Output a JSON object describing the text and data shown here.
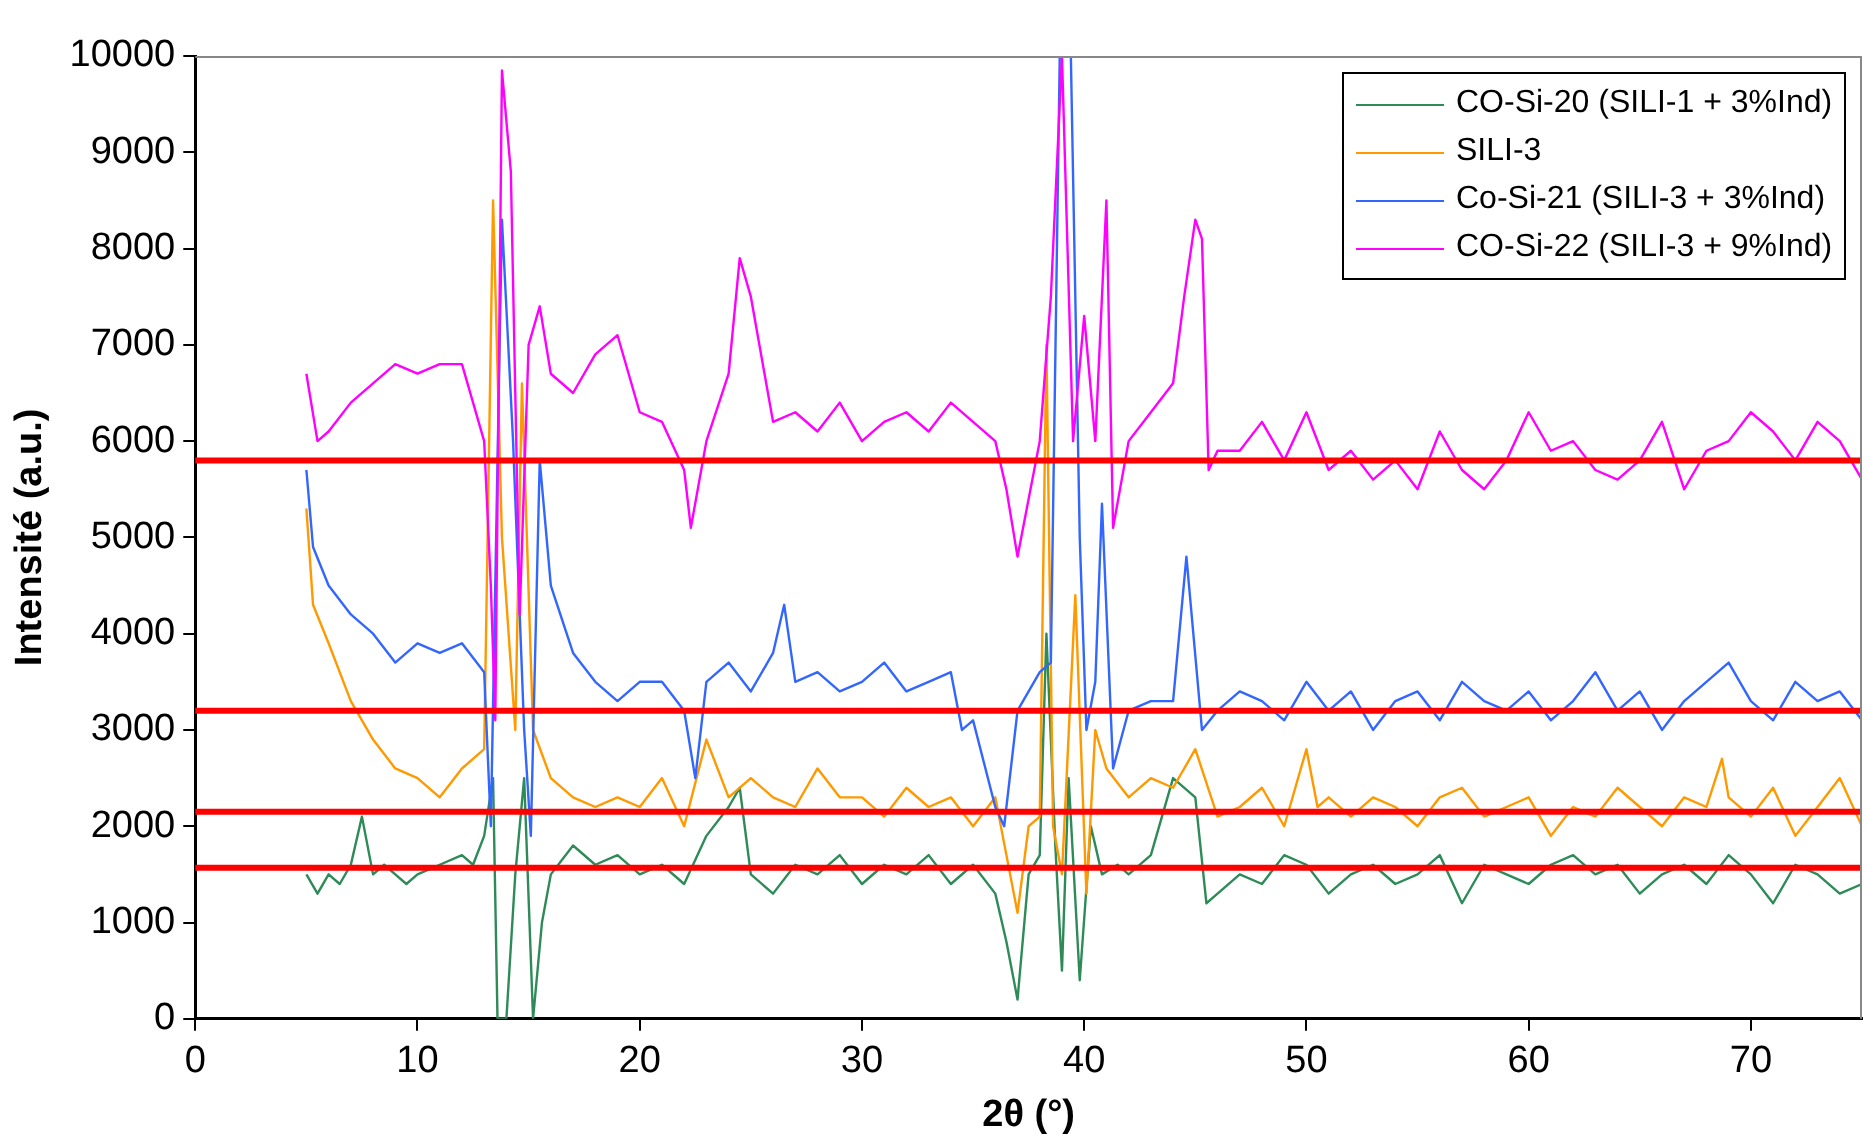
{
  "chart_data": {
    "type": "line",
    "xlabel": "2θ (°)",
    "ylabel": "Intensité (a.u.)",
    "xlim": [
      0,
      75
    ],
    "xticks": [
      0,
      10,
      20,
      30,
      40,
      50,
      60,
      70
    ],
    "ylim": [
      0,
      10000
    ],
    "yticks": [
      0,
      1000,
      2000,
      3000,
      4000,
      5000,
      6000,
      7000,
      8000,
      9000,
      10000
    ],
    "grid": false,
    "legend": "top right",
    "marker": "none",
    "line_style": "solid",
    "ref_lines": [
      {
        "axis": "y",
        "value": 5800,
        "color": "#ff0000"
      },
      {
        "axis": "y",
        "value": 3200,
        "color": "#ff0000"
      },
      {
        "axis": "y",
        "value": 2150,
        "color": "#ff0000"
      },
      {
        "axis": "y",
        "value": 1570,
        "color": "#ff0000"
      }
    ],
    "series": [
      {
        "name": "CO-Si-20 (SILI-1 + 3%Ind)",
        "color": "#2e8b57",
        "x": [
          5,
          5.5,
          6,
          6.5,
          7,
          7.5,
          8,
          8.5,
          9,
          9.5,
          10,
          11,
          12,
          12.5,
          13,
          13.4,
          13.6,
          14,
          14.4,
          14.8,
          15.2,
          15.6,
          16,
          17,
          18,
          19,
          20,
          21,
          22,
          23,
          24,
          24.5,
          25,
          26,
          27,
          28,
          29,
          30,
          31,
          32,
          33,
          34,
          35,
          36,
          36.5,
          37,
          37.5,
          38,
          38.3,
          38.7,
          39,
          39.3,
          39.8,
          40.3,
          40.8,
          41.5,
          42,
          43,
          44,
          45,
          45.5,
          46,
          47,
          48,
          49,
          50,
          51,
          52,
          53,
          54,
          55,
          56,
          57,
          58,
          59,
          60,
          61,
          62,
          63,
          64,
          65,
          66,
          67,
          68,
          69,
          70,
          71,
          72,
          73,
          74,
          75
        ],
        "values": [
          1500,
          1300,
          1500,
          1400,
          1600,
          2100,
          1500,
          1600,
          1500,
          1400,
          1500,
          1600,
          1700,
          1600,
          1900,
          2500,
          0,
          0,
          1500,
          2500,
          0,
          1000,
          1500,
          1800,
          1600,
          1700,
          1500,
          1600,
          1400,
          1900,
          2200,
          2400,
          1500,
          1300,
          1600,
          1500,
          1700,
          1400,
          1600,
          1500,
          1700,
          1400,
          1600,
          1300,
          800,
          200,
          1500,
          1700,
          4000,
          1800,
          500,
          2500,
          400,
          2000,
          1500,
          1600,
          1500,
          1700,
          2500,
          2300,
          1200,
          1300,
          1500,
          1400,
          1700,
          1600,
          1300,
          1500,
          1600,
          1400,
          1500,
          1700,
          1200,
          1600,
          1500,
          1400,
          1600,
          1700,
          1500,
          1600,
          1300,
          1500,
          1600,
          1400,
          1700,
          1500,
          1200,
          1600,
          1500,
          1300,
          1400
        ]
      },
      {
        "name": "SILI-3",
        "color": "#ff9900",
        "x": [
          5,
          5.3,
          6,
          7,
          8,
          9,
          10,
          11,
          12,
          13,
          13.4,
          13.8,
          14.4,
          14.7,
          15.2,
          16,
          17,
          18,
          19,
          20,
          21,
          22,
          23,
          24,
          25,
          26,
          27,
          28,
          29,
          30,
          31,
          32,
          33,
          34,
          35,
          36,
          36.5,
          37,
          37.5,
          38,
          38.3,
          38.6,
          39,
          39.6,
          40.1,
          40.5,
          41,
          42,
          43,
          44,
          45,
          46,
          47,
          48,
          49,
          50,
          50.5,
          51,
          52,
          53,
          54,
          55,
          56,
          57,
          58,
          59,
          60,
          61,
          62,
          63,
          64,
          65,
          66,
          67,
          68,
          68.7,
          69,
          70,
          71,
          72,
          73,
          74,
          75
        ],
        "values": [
          5300,
          4300,
          3900,
          3300,
          2900,
          2600,
          2500,
          2300,
          2600,
          2800,
          8500,
          5000,
          3000,
          6600,
          3000,
          2500,
          2300,
          2200,
          2300,
          2200,
          2500,
          2000,
          2900,
          2300,
          2500,
          2300,
          2200,
          2600,
          2300,
          2300,
          2100,
          2400,
          2200,
          2300,
          2000,
          2300,
          1700,
          1100,
          2000,
          2100,
          7000,
          2000,
          1500,
          4400,
          1300,
          3000,
          2600,
          2300,
          2500,
          2400,
          2800,
          2100,
          2200,
          2400,
          2000,
          2800,
          2200,
          2300,
          2100,
          2300,
          2200,
          2000,
          2300,
          2400,
          2100,
          2200,
          2300,
          1900,
          2200,
          2100,
          2400,
          2200,
          2000,
          2300,
          2200,
          2700,
          2300,
          2100,
          2400,
          1900,
          2200,
          2500,
          2000
        ]
      },
      {
        "name": "Co-Si-21 (SILI-3 + 3%Ind)",
        "color": "#3366ff",
        "x": [
          5,
          5.3,
          6,
          7,
          8,
          9,
          10,
          11,
          12,
          13,
          13.3,
          13.8,
          14.3,
          14.8,
          15.1,
          15.5,
          16,
          17,
          18,
          19,
          20,
          21,
          22,
          22.5,
          23,
          24,
          25,
          26,
          26.5,
          27,
          28,
          29,
          30,
          31,
          32,
          33,
          34,
          34.5,
          35,
          36,
          36.4,
          37,
          38,
          38.5,
          38.9,
          39.4,
          39.8,
          40.1,
          40.5,
          40.8,
          41.3,
          42,
          43,
          44,
          44.6,
          45.3,
          46,
          47,
          48,
          49,
          50,
          51,
          52,
          53,
          54,
          55,
          56,
          57,
          58,
          59,
          60,
          61,
          62,
          63,
          64,
          65,
          66,
          67,
          68,
          69,
          70,
          71,
          72,
          73,
          74,
          75
        ],
        "values": [
          5700,
          4900,
          4500,
          4200,
          4000,
          3700,
          3900,
          3800,
          3900,
          3600,
          2000,
          8300,
          6000,
          3000,
          1900,
          5800,
          4500,
          3800,
          3500,
          3300,
          3500,
          3500,
          3200,
          2500,
          3500,
          3700,
          3400,
          3800,
          4300,
          3500,
          3600,
          3400,
          3500,
          3700,
          3400,
          3500,
          3600,
          3000,
          3100,
          2200,
          2000,
          3200,
          3600,
          3700,
          10000,
          10000,
          5000,
          3000,
          3500,
          5350,
          2600,
          3200,
          3300,
          3300,
          4800,
          3000,
          3200,
          3400,
          3300,
          3100,
          3500,
          3200,
          3400,
          3000,
          3300,
          3400,
          3100,
          3500,
          3300,
          3200,
          3400,
          3100,
          3300,
          3600,
          3200,
          3400,
          3000,
          3300,
          3500,
          3700,
          3300,
          3100,
          3500,
          3300,
          3400,
          3100
        ]
      },
      {
        "name": "CO-Si-22 (SILI-3 + 9%Ind)",
        "color": "#ff00ff",
        "x": [
          5,
          5.5,
          6,
          7,
          8,
          9,
          10,
          11,
          12,
          12.5,
          13,
          13.3,
          13.5,
          13.8,
          14.2,
          14.6,
          15,
          15.5,
          16,
          17,
          18,
          19,
          20,
          21,
          22,
          22.3,
          23,
          24,
          24.5,
          25,
          26,
          27,
          28,
          29,
          30,
          31,
          32,
          33,
          34,
          35,
          36,
          36.5,
          37,
          38,
          38.5,
          39,
          39.5,
          40,
          40.5,
          41,
          41.3,
          42,
          43,
          44,
          44.5,
          45,
          45.3,
          45.6,
          46,
          47,
          48,
          49,
          50,
          51,
          52,
          53,
          54,
          55,
          56,
          57,
          58,
          59,
          60,
          61,
          62,
          63,
          64,
          65,
          66,
          67,
          68,
          69,
          70,
          71,
          72,
          73,
          74,
          75
        ],
        "values": [
          6700,
          6000,
          6100,
          6400,
          6600,
          6800,
          6700,
          6800,
          6800,
          6400,
          6000,
          4500,
          3100,
          9850,
          8800,
          4200,
          7000,
          7400,
          6700,
          6500,
          6900,
          7100,
          6300,
          6200,
          5700,
          5100,
          6000,
          6700,
          7900,
          7500,
          6200,
          6300,
          6100,
          6400,
          6000,
          6200,
          6300,
          6100,
          6400,
          6200,
          6000,
          5500,
          4800,
          6000,
          7500,
          10000,
          6000,
          7300,
          6000,
          8500,
          5100,
          6000,
          6300,
          6600,
          7500,
          8300,
          8100,
          5700,
          5900,
          5900,
          6200,
          5800,
          6300,
          5700,
          5900,
          5600,
          5800,
          5500,
          6100,
          5700,
          5500,
          5800,
          6300,
          5900,
          6000,
          5700,
          5600,
          5800,
          6200,
          5500,
          5900,
          6000,
          6300,
          6100,
          5800,
          6200,
          6000,
          5600
        ]
      }
    ]
  }
}
